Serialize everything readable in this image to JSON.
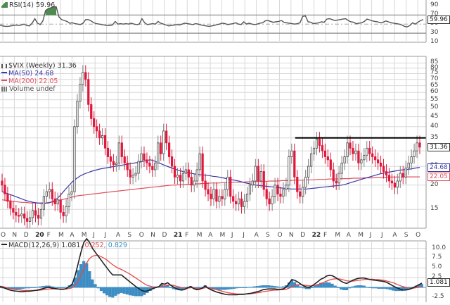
{
  "chart_data": [
    {
      "type": "line",
      "panel": "RSI",
      "title": "RSI(14)",
      "current_value": 59.96,
      "legend": "RSI(14) 59.96",
      "ylim": [
        10,
        100
      ],
      "yticks": [
        90,
        70,
        50,
        30,
        10
      ],
      "reference_lines": [
        70,
        50,
        30
      ],
      "overbought_fill_color": "#4f8a4f",
      "line_color": "#555555",
      "values": [
        48,
        46,
        45,
        45,
        46,
        47,
        48,
        47,
        48,
        50,
        47,
        46,
        52,
        62,
        52,
        49,
        57,
        80,
        84,
        86,
        88,
        88,
        66,
        60,
        58,
        56,
        52,
        53,
        51,
        50,
        49,
        52,
        60,
        60,
        57,
        53,
        51,
        50,
        49,
        48,
        47,
        47,
        48,
        56,
        50,
        51,
        50,
        51,
        50,
        52,
        50,
        49,
        50,
        62,
        53,
        49,
        50,
        51,
        50,
        56,
        52,
        50,
        48,
        46,
        47,
        48,
        49,
        48,
        50,
        52,
        51,
        50,
        49,
        51,
        50,
        48,
        47,
        46,
        45,
        46,
        47,
        49,
        50,
        52,
        51,
        49,
        50,
        51,
        53,
        50,
        49,
        55,
        50,
        52,
        50,
        49,
        50,
        52,
        53,
        57,
        58,
        56,
        54,
        55,
        56,
        58,
        54,
        53,
        52,
        51,
        50,
        51,
        53,
        67,
        68,
        55,
        54,
        51,
        52,
        53,
        55,
        54,
        61,
        62,
        60,
        58,
        59,
        60,
        61,
        62,
        58,
        55,
        54,
        51,
        52,
        53,
        56,
        61,
        59,
        57,
        56,
        55,
        53,
        54,
        57,
        55,
        53,
        52,
        51,
        50,
        48,
        45,
        44,
        47,
        53,
        50,
        54,
        58,
        60
      ]
    },
    {
      "type": "candlestick",
      "panel": "Price",
      "title": "$VIX (Weekly) 31.36",
      "symbol": "$VIX",
      "period": "Weekly",
      "last": 31.36,
      "yscale": "log",
      "ylim": [
        12,
        90
      ],
      "yticks": [
        85,
        80,
        75,
        70,
        65,
        60,
        55,
        50,
        45,
        40,
        35,
        30,
        25,
        20,
        15
      ],
      "x_tick_labels": [
        "O",
        "N",
        "D",
        "20",
        "F",
        "M",
        "A",
        "M",
        "J",
        "J",
        "A",
        "S",
        "O",
        "N",
        "D",
        "21",
        "F",
        "M",
        "A",
        "M",
        "J",
        "J",
        "A",
        "S",
        "O",
        "N",
        "D",
        "22",
        "F",
        "M",
        "A",
        "M",
        "J",
        "J",
        "A",
        "S",
        "O"
      ],
      "bold_x_ticks": [
        "20",
        "21",
        "22"
      ],
      "up_color": "#808080",
      "down_color": "#e0183c",
      "resistance_line": {
        "value": 35,
        "color": "#000000",
        "from_label": "N",
        "to_label": "O"
      },
      "series": [
        {
          "name": "MA(50)",
          "value": 24.68,
          "color": "#3a3aa8",
          "values": [
            18.5,
            18.2,
            17.9,
            17.6,
            17.3,
            17.0,
            16.7,
            16.5,
            16.3,
            16.2,
            16.1,
            16.1,
            16.2,
            16.5,
            17.0,
            17.8,
            18.8,
            19.8,
            20.8,
            21.6,
            22.3,
            22.8,
            23.2,
            23.6,
            23.9,
            24.2,
            24.4,
            24.6,
            24.8,
            25.0,
            25.2,
            25.4,
            25.6,
            25.8,
            26.0,
            26.2,
            26.5,
            26.8,
            27.0,
            26.6,
            26.1,
            25.6,
            25.1,
            24.7,
            24.3,
            23.9,
            23.6,
            23.3,
            23.1,
            22.9,
            22.7,
            22.6,
            22.5,
            22.4,
            22.2,
            22.1,
            21.9,
            21.7,
            21.5,
            21.3,
            21.1,
            20.9,
            20.6,
            20.4,
            20.2,
            20.0,
            19.9,
            19.8,
            19.7,
            19.6,
            19.5,
            19.4,
            19.3,
            19.2,
            19.1,
            19.1,
            19.1,
            19.1,
            19.1,
            19.2,
            19.3,
            19.4,
            19.5,
            19.6,
            19.7,
            19.8,
            19.9,
            20.0,
            20.2,
            20.5,
            20.8,
            21.1,
            21.4,
            21.7,
            22.0,
            22.3,
            22.6,
            22.9,
            23.1,
            23.3,
            23.5,
            23.7,
            23.9,
            24.0,
            24.1,
            24.3,
            24.5,
            24.68
          ]
        },
        {
          "name": "MA(200)",
          "value": 22.05,
          "color": "#e05060",
          "values": [
            16.8,
            16.7,
            16.6,
            16.5,
            16.4,
            16.3,
            16.3,
            16.2,
            16.2,
            16.2,
            16.2,
            16.2,
            16.3,
            16.4,
            16.6,
            16.8,
            17.0,
            17.2,
            17.4,
            17.6,
            17.7,
            17.8,
            17.9,
            18.0,
            18.1,
            18.2,
            18.3,
            18.4,
            18.5,
            18.6,
            18.7,
            18.8,
            18.9,
            19.0,
            19.1,
            19.2,
            19.3,
            19.4,
            19.5,
            19.6,
            19.7,
            19.8,
            19.9,
            20.0,
            20.0,
            20.1,
            20.1,
            20.2,
            20.2,
            20.3,
            20.3,
            20.4,
            20.4,
            20.5,
            20.5,
            20.5,
            20.6,
            20.6,
            20.6,
            20.7,
            20.7,
            20.7,
            20.8,
            20.8,
            20.8,
            20.9,
            20.9,
            20.9,
            21.0,
            21.0,
            21.0,
            21.1,
            21.1,
            21.1,
            21.2,
            21.2,
            21.2,
            21.3,
            21.3,
            21.3,
            21.4,
            21.4,
            21.4,
            21.5,
            21.5,
            21.5,
            21.6,
            21.6,
            21.6,
            21.7,
            21.7,
            21.7,
            21.8,
            21.8,
            21.8,
            21.9,
            21.9,
            21.9,
            22.0,
            22.0,
            22.0,
            22.0,
            22.05,
            22.05,
            22.05,
            22.05,
            22.05
          ]
        },
        {
          "name": "Volume",
          "value": "undef"
        }
      ],
      "close_values": [
        20.0,
        18.0,
        16.5,
        15.2,
        14.5,
        14.0,
        13.9,
        14.2,
        13.5,
        13.0,
        13.6,
        14.8,
        14.0,
        13.5,
        15.0,
        17.5,
        18.5,
        19.0,
        17.0,
        16.0,
        16.8,
        14.5,
        13.9,
        15.5,
        18.0,
        18.5,
        40.0,
        54.0,
        66.0,
        76.0,
        70.0,
        52.0,
        44.0,
        40.0,
        38.0,
        35.0,
        36.0,
        31.0,
        28.0,
        26.5,
        25.5,
        26.0,
        33.0,
        28.0,
        26.0,
        24.0,
        22.0,
        22.5,
        23.0,
        26.5,
        29.0,
        27.0,
        26.0,
        25.0,
        24.0,
        26.0,
        33.0,
        29.0,
        38.0,
        33.0,
        28.0,
        25.0,
        22.0,
        22.5,
        21.0,
        23.0,
        24.0,
        22.0,
        20.0,
        21.0,
        24.0,
        29.0,
        21.0,
        19.0,
        18.0,
        17.0,
        19.0,
        16.5,
        17.5,
        17.0,
        19.0,
        22.0,
        17.5,
        16.5,
        16.0,
        17.0,
        15.5,
        16.5,
        18.0,
        20.0,
        21.0,
        25.0,
        21.0,
        23.5,
        19.0,
        17.0,
        16.0,
        17.5,
        20.0,
        18.0,
        17.5,
        19.0,
        20.0,
        28.0,
        30.0,
        22.0,
        18.5,
        17.5,
        19.5,
        22.0,
        25.0,
        29.0,
        31.0,
        34.5,
        32.0,
        30.0,
        28.0,
        27.0,
        24.0,
        21.0,
        20.5,
        23.0,
        26.0,
        28.0,
        33.0,
        31.0,
        29.0,
        30.0,
        26.0,
        27.0,
        28.5,
        31.0,
        29.0,
        28.0,
        27.0,
        26.0,
        25.0,
        23.5,
        22.5,
        21.0,
        20.5,
        19.5,
        21.0,
        23.0,
        22.0,
        24.5,
        26.0,
        28.0,
        30.0,
        33.0,
        31.36
      ]
    },
    {
      "type": "line+bar",
      "panel": "MACD",
      "title": "MACD(12,26,9)",
      "legend": "MACD(12,26,9) 1.081, 0.252, 0.829",
      "macd_value": 1.081,
      "signal_value": 0.252,
      "histogram_value": 0.829,
      "ylim": [
        -3.5,
        11
      ],
      "yticks": [
        10.0,
        7.5,
        5.0,
        2.5,
        0,
        -2.5
      ],
      "series": [
        {
          "name": "MACD",
          "color": "#222222",
          "values": [
            0.2,
            0.0,
            -0.3,
            -0.6,
            -0.8,
            -0.9,
            -1.0,
            -1.1,
            -1.1,
            -1.0,
            -1.0,
            -0.9,
            -0.8,
            -0.7,
            -0.5,
            -0.3,
            -0.1,
            0.0,
            -0.2,
            -0.3,
            -0.4,
            -0.5,
            -0.5,
            -0.3,
            0.2,
            0.8,
            3.0,
            6.0,
            9.0,
            11.5,
            12.5,
            11.5,
            10.0,
            9.0,
            8.0,
            7.0,
            6.0,
            5.0,
            4.0,
            3.2,
            3.2,
            3.2,
            3.2,
            2.6,
            2.0,
            1.4,
            0.8,
            0.2,
            -0.3,
            -0.8,
            -1.0,
            -0.9,
            -0.6,
            -0.3,
            0.0,
            0.2,
            1.0,
            0.8,
            1.2,
            0.6,
            0.1,
            -0.3,
            -0.6,
            -0.7,
            -0.5,
            -0.1,
            0.2,
            -0.3,
            -0.6,
            -0.5,
            -0.2,
            0.4,
            -0.2,
            -0.6,
            -0.9,
            -1.2,
            -1.4,
            -1.6,
            -1.8,
            -1.9,
            -1.9,
            -1.9,
            -1.9,
            -1.8,
            -1.8,
            -1.7,
            -1.6,
            -1.5,
            -1.3,
            -1.1,
            -0.9,
            -0.6,
            -0.5,
            -0.4,
            -0.4,
            -0.4,
            -0.5,
            -0.5,
            -0.4,
            0.0,
            1.0,
            2.0,
            1.8,
            1.4,
            0.9,
            0.4,
            0.1,
            0.0,
            0.4,
            0.9,
            1.5,
            2.1,
            2.4,
            2.9,
            3.1,
            3.0,
            2.6,
            2.1,
            1.6,
            1.2,
            1.0,
            1.4,
            1.8,
            2.1,
            2.3,
            2.4,
            2.4,
            2.2,
            2.0,
            1.9,
            1.8,
            1.7,
            1.6,
            1.5,
            1.2,
            0.8,
            0.4,
            0.0,
            -0.3,
            -0.6,
            -0.7,
            -0.6,
            -0.4,
            -0.1,
            0.3,
            0.7,
            1.081
          ]
        },
        {
          "name": "Signal",
          "color": "#e84848",
          "values": [
            0.3,
            0.2,
            0.0,
            -0.2,
            -0.4,
            -0.5,
            -0.6,
            -0.7,
            -0.8,
            -0.8,
            -0.8,
            -0.8,
            -0.8,
            -0.8,
            -0.7,
            -0.6,
            -0.5,
            -0.4,
            -0.4,
            -0.4,
            -0.4,
            -0.4,
            -0.4,
            -0.4,
            -0.3,
            -0.1,
            0.5,
            1.6,
            3.1,
            4.8,
            6.3,
            7.4,
            8.0,
            8.2,
            8.2,
            7.9,
            7.5,
            7.0,
            6.4,
            5.8,
            5.3,
            4.9,
            4.6,
            4.2,
            3.8,
            3.4,
            2.9,
            2.4,
            1.9,
            1.4,
            0.9,
            0.5,
            0.3,
            0.1,
            0.1,
            0.1,
            0.3,
            0.4,
            0.6,
            0.6,
            0.5,
            0.3,
            0.1,
            -0.1,
            -0.2,
            -0.2,
            -0.1,
            -0.1,
            -0.2,
            -0.3,
            -0.3,
            -0.1,
            -0.1,
            -0.2,
            -0.4,
            -0.6,
            -0.8,
            -1.0,
            -1.2,
            -1.4,
            -1.5,
            -1.6,
            -1.7,
            -1.7,
            -1.7,
            -1.7,
            -1.7,
            -1.6,
            -1.5,
            -1.4,
            -1.3,
            -1.1,
            -1.0,
            -0.9,
            -0.8,
            -0.7,
            -0.7,
            -0.6,
            -0.6,
            -0.5,
            -0.2,
            0.2,
            0.5,
            0.7,
            0.7,
            0.6,
            0.5,
            0.4,
            0.4,
            0.5,
            0.7,
            1.0,
            1.3,
            1.6,
            1.9,
            2.1,
            2.2,
            2.2,
            2.1,
            1.9,
            1.7,
            1.6,
            1.6,
            1.7,
            1.8,
            1.9,
            2.0,
            2.1,
            2.1,
            2.1,
            2.0,
            2.0,
            1.9,
            1.8,
            1.6,
            1.4,
            1.2,
            0.9,
            0.6,
            0.3,
            0.1,
            -0.1,
            -0.2,
            -0.2,
            -0.1,
            0.0,
            0.252
          ]
        }
      ],
      "histogram_color": "#3a8fc8"
    }
  ],
  "panels": {
    "rsi": {
      "legend_name": "RSI(14)",
      "legend_value": "59.96",
      "yticks": [
        "90",
        "70",
        "50",
        "30",
        "10"
      ],
      "tag": "59.96"
    },
    "price": {
      "legend_title": "$VIX (Weekly) 31.36",
      "legend_ma50": "MA(50) 24.68",
      "legend_ma200": "MA(200) 22.05",
      "legend_volume": "Volume undef",
      "yticks": [
        "85",
        "80",
        "75",
        "70",
        "65",
        "60",
        "55",
        "50",
        "45",
        "40",
        "35",
        "30",
        "25",
        "20",
        "15"
      ],
      "tags": {
        "last": "31.36",
        "ma50": "24.68",
        "ma200": "22.05"
      },
      "xticks": [
        "O",
        "N",
        "D",
        "20",
        "F",
        "M",
        "A",
        "M",
        "J",
        "J",
        "A",
        "S",
        "O",
        "N",
        "D",
        "21",
        "F",
        "M",
        "A",
        "M",
        "J",
        "J",
        "A",
        "S",
        "O",
        "N",
        "D",
        "22",
        "F",
        "M",
        "A",
        "M",
        "J",
        "J",
        "A",
        "S",
        "O"
      ]
    },
    "macd": {
      "legend_name": "MACD(12,26,9)",
      "legend_macd": "1.081",
      "legend_signal": "0.252",
      "legend_hist": "0.829",
      "yticks": [
        "10.0",
        "7.5",
        "5.0",
        "2.5",
        "",
        "-2.5"
      ],
      "tag": "1.081"
    }
  },
  "colors": {
    "grid": "#d8d8d8",
    "frame": "#999999",
    "up": "#808080",
    "down": "#e0183c",
    "ma50": "#3a3aa8",
    "ma200": "#e05060",
    "macd": "#222222",
    "signal": "#e84848",
    "hist": "#3a8fc8",
    "rsi_fill": "#4f8a4f"
  }
}
